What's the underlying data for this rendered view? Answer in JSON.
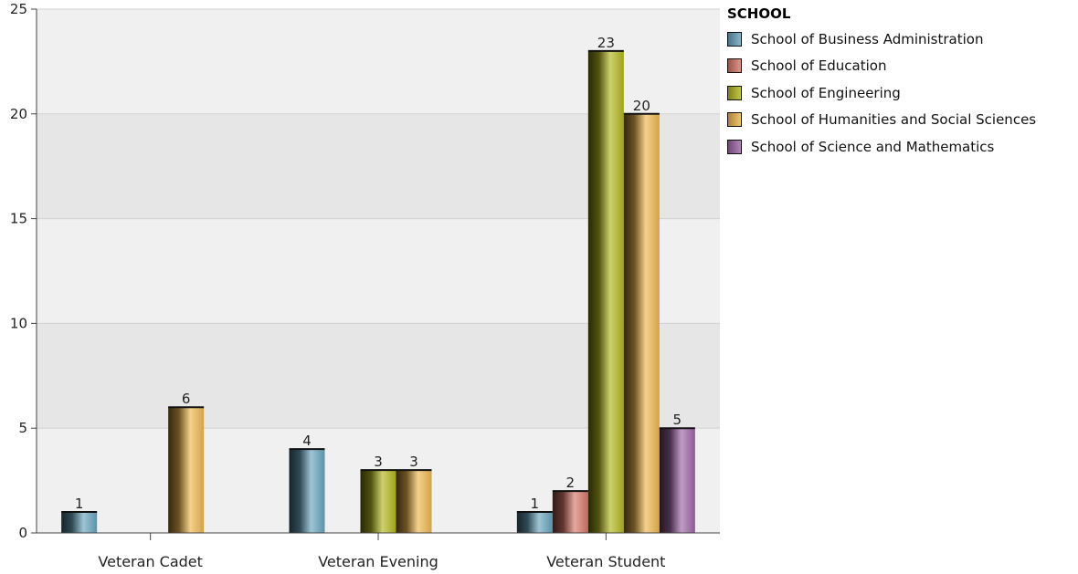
{
  "chart_data": {
    "type": "bar",
    "categories": [
      "Veteran Cadet",
      "Veteran Evening",
      "Veteran Student"
    ],
    "legend_title": "SCHOOL",
    "legend_position": "top-right",
    "ylim": [
      0,
      25
    ],
    "yticks": [
      0,
      5,
      10,
      15,
      20,
      25
    ],
    "grid": true,
    "series": [
      {
        "name": "School of Business Administration",
        "color": "#6aa5bf",
        "values": [
          1,
          4,
          1
        ]
      },
      {
        "name": "School of Education",
        "color": "#d8796a",
        "values": [
          null,
          null,
          2
        ]
      },
      {
        "name": "School of Engineering",
        "color": "#b4b81e",
        "values": [
          null,
          3,
          23
        ]
      },
      {
        "name": "School of Humanities and Social Sciences",
        "color": "#f0b84e",
        "values": [
          6,
          3,
          20
        ]
      },
      {
        "name": "School of Science and Mathematics",
        "color": "#a066a8",
        "values": [
          null,
          null,
          5
        ]
      }
    ]
  }
}
